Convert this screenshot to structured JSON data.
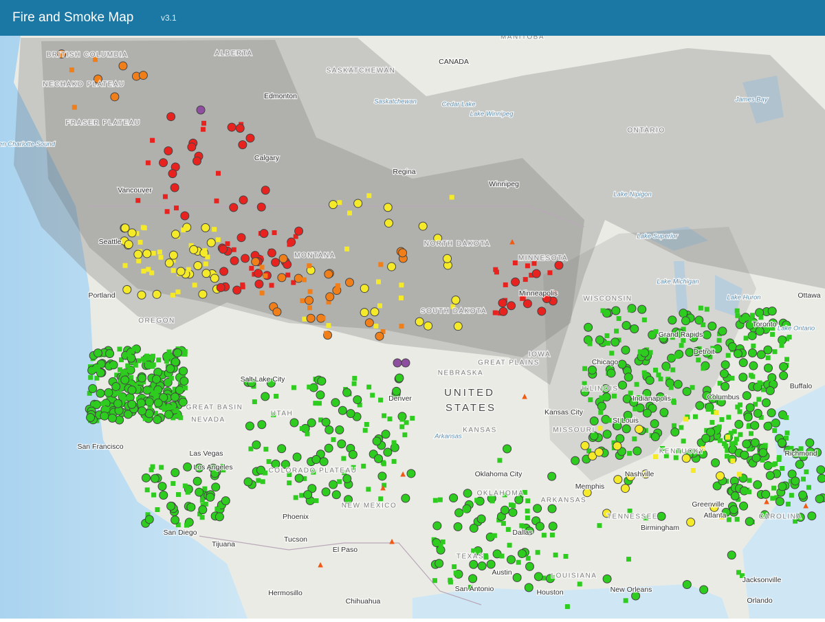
{
  "header": {
    "title": "Fire and Smoke Map",
    "version": "v3.1"
  },
  "map": {
    "labels": [
      "BRITISH COLUMBIA",
      "ALBERTA",
      "SASKATCHEWAN",
      "MANITOBA",
      "CANADA",
      "NECHAKO PLATEAU",
      "FRASER PLATEAU",
      "Queen Charlotte Sound",
      "Edmonton",
      "Calgary",
      "Regina",
      "Winnipeg",
      "Cedar Lake",
      "Lake Winnipeg",
      "ONTARIO",
      "James Bay",
      "Lake Nipigon",
      "Lake Superior",
      "Lake Michigan",
      "Lake Huron",
      "Lake Ontario",
      "Ottawa",
      "Toronto",
      "Buffalo",
      "Vancouver",
      "Seattle",
      "Portland",
      "OREGON",
      "GREAT BASIN",
      "NEVADA",
      "San Francisco",
      "Las Vegas",
      "Los Angeles",
      "San Diego",
      "Tijuana",
      "Phoenix",
      "Tucson",
      "El Paso",
      "NEW MEXICO",
      "COLORADO PLATEAU",
      "UTAH",
      "Salt Lake City",
      "Denver",
      "MONTANA",
      "NORTH DAKOTA",
      "SOUTH DAKOTA",
      "NEBRASKA",
      "GREAT PLAINS",
      "UNITED",
      "STATES",
      "KANSAS",
      "Kansas City",
      "MISSOURI",
      "St Louis",
      "Oklahoma City",
      "OKLAHOMA",
      "TEXAS",
      "Dallas",
      "Austin",
      "Houston",
      "San Antonio",
      "ARKANSAS",
      "Memphis",
      "Nashville",
      "TENNESSEE",
      "KENTUCKY",
      "ILLINOIS",
      "Chicago",
      "Indianapolis",
      "Columbus",
      "Detroit",
      "Grand Rapids",
      "Minneapolis",
      "MINNESOTA",
      "IOWA",
      "WISCONSIN",
      "Atlanta",
      "Birmingham",
      "LOUISIANA",
      "New Orleans",
      "Jacksonville",
      "Orlando",
      "Greenville",
      "Richmond",
      "CAROLINA",
      "Hermosillo",
      "Chihuahua",
      "Arkansas",
      "Saskatchewan"
    ]
  }
}
